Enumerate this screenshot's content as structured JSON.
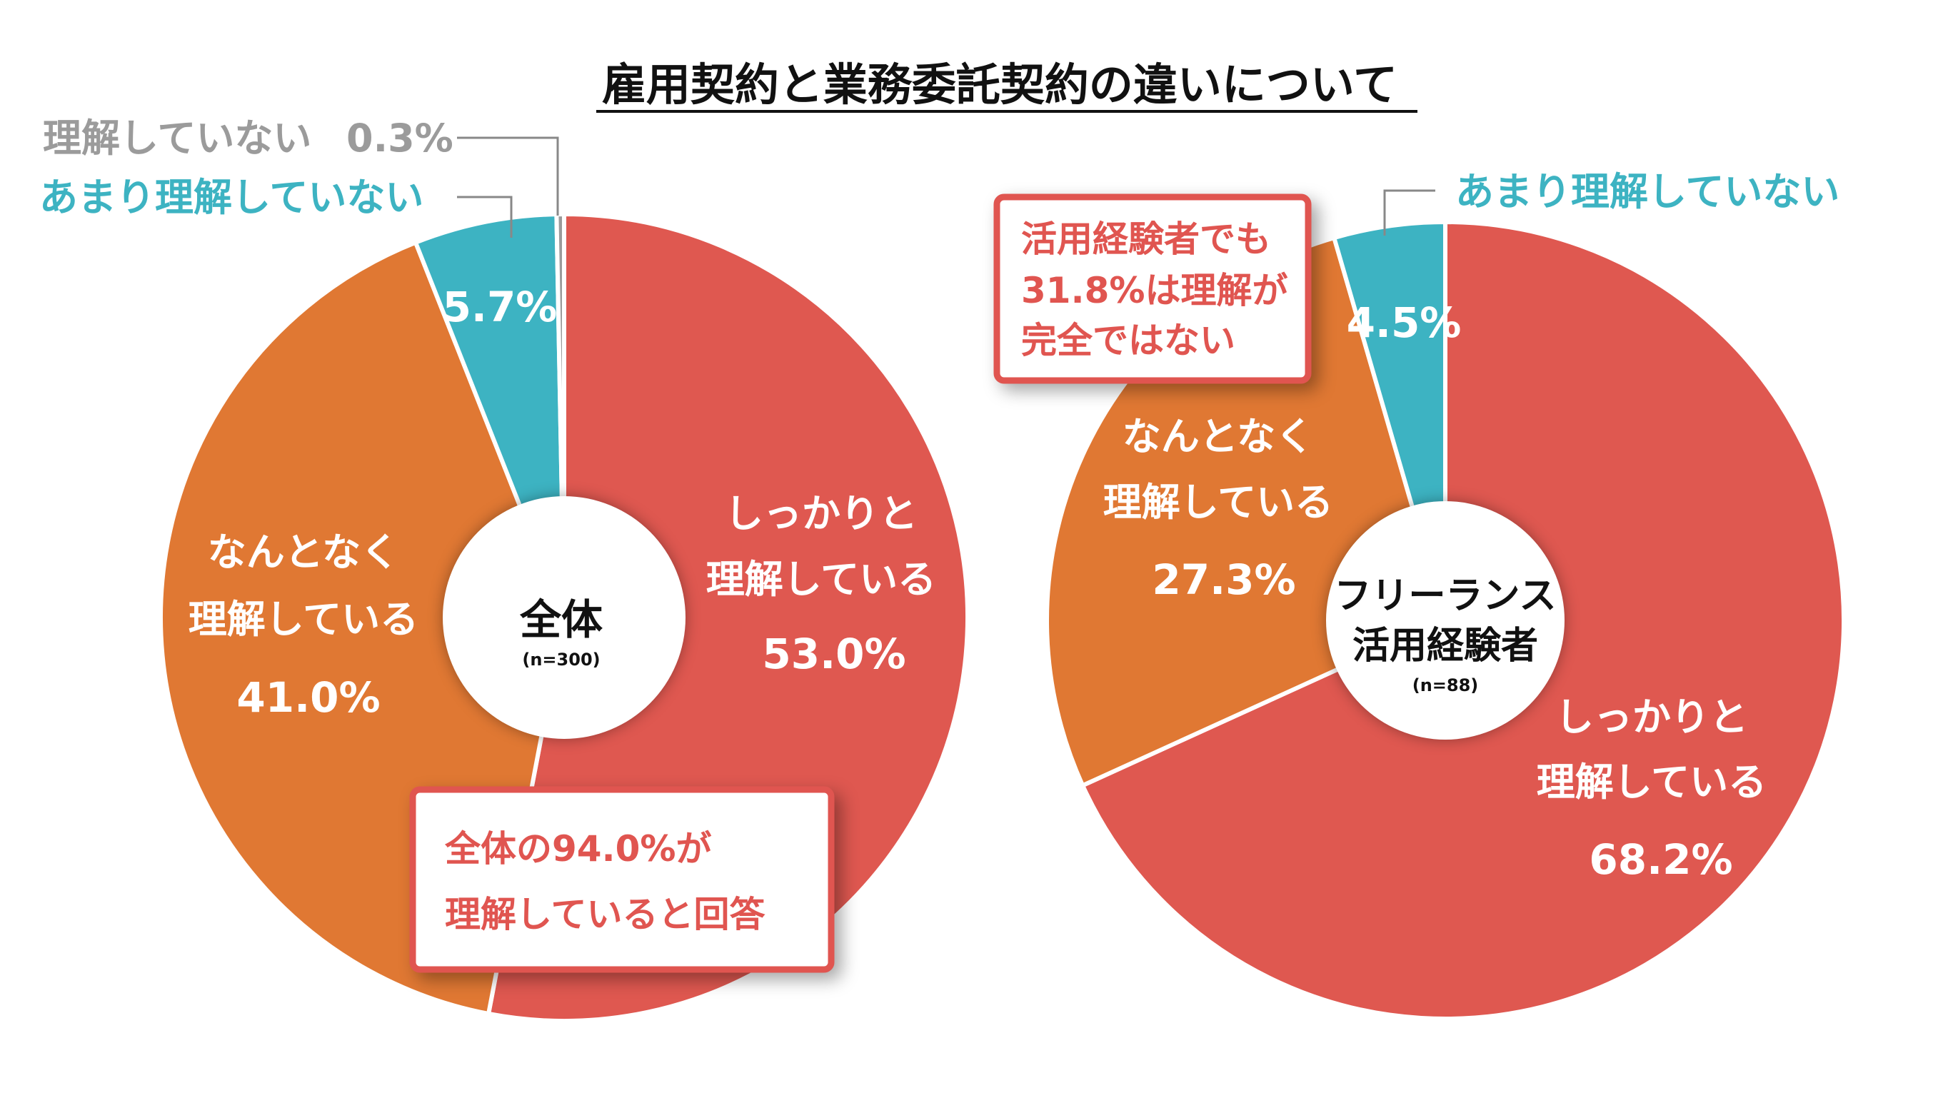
{
  "title": "雇用契約と業務委託契約の違いについて",
  "colors": {
    "firm": "#DF5850",
    "somewhat": "#E07833",
    "not_much": "#3DB3C2",
    "not": "#9B9B9B",
    "callout": "#E05550"
  },
  "chart_data": [
    {
      "type": "pie",
      "center_label": "全体",
      "sample": "(n=300)",
      "slices": [
        {
          "name": "しっかりと理解している",
          "label_lines": [
            "しっかりと",
            "理解している"
          ],
          "value": 53.0,
          "value_label": "53.0%",
          "color": "#DF5850"
        },
        {
          "name": "なんとなく理解している",
          "label_lines": [
            "なんとなく",
            "理解している"
          ],
          "value": 41.0,
          "value_label": "41.0%",
          "color": "#E07833"
        },
        {
          "name": "あまり理解していない",
          "label_lines": [
            "あまり理解していない"
          ],
          "value": 5.7,
          "value_label": "5.7%",
          "color": "#3DB3C2"
        },
        {
          "name": "理解していない",
          "label_lines": [
            "理解していない"
          ],
          "value": 0.3,
          "value_label": "0.3%",
          "color": "#9B9B9B"
        }
      ],
      "callout": [
        "全体の94.0%が",
        "理解していると回答"
      ]
    },
    {
      "type": "pie",
      "center_label": [
        "フリーランス",
        "活用経験者"
      ],
      "sample": "(n=88)",
      "slices": [
        {
          "name": "しっかりと理解している",
          "label_lines": [
            "しっかりと",
            "理解している"
          ],
          "value": 68.2,
          "value_label": "68.2%",
          "color": "#DF5850"
        },
        {
          "name": "なんとなく理解している",
          "label_lines": [
            "なんとなく",
            "理解している"
          ],
          "value": 27.3,
          "value_label": "27.3%",
          "color": "#E07833"
        },
        {
          "name": "あまり理解していない",
          "label_lines": [
            "あまり理解していない"
          ],
          "value": 4.5,
          "value_label": "4.5%",
          "color": "#3DB3C2"
        }
      ],
      "callout": [
        "活用経験者でも",
        "31.8%は理解が",
        "完全ではない"
      ]
    }
  ]
}
